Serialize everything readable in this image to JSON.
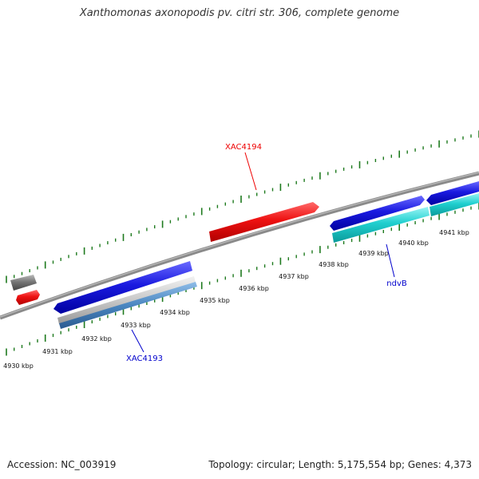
{
  "title": "Xanthomonas axonopodis pv. citri str. 306, complete genome",
  "footer": {
    "accession": "Accession: NC_003919",
    "summary": "Topology: circular; Length: 5,175,554 bp; Genes: 4,373"
  },
  "colors": {
    "backbone": "#8a8a8a",
    "ticks": "#1e7a1e",
    "red": "#ee1111",
    "blue": "#1a1ae0",
    "cyan": "#20cfcf",
    "gray": "#777777",
    "silver": "#c8c8c8",
    "steel": "#4a86c0",
    "label_red": "#ee0000",
    "label_blue": "#0000cc"
  },
  "kbp_labels": [
    "4930 kbp",
    "4931 kbp",
    "4932 kbp",
    "4933 kbp",
    "4934 kbp",
    "4935 kbp",
    "4936 kbp",
    "4937 kbp",
    "4938 kbp",
    "4939 kbp",
    "4940 kbp",
    "4941 kbp"
  ],
  "gene_labels": {
    "xac4194": "XAC4194",
    "xac4193": "XAC4193",
    "ndvb": "ndvB"
  }
}
